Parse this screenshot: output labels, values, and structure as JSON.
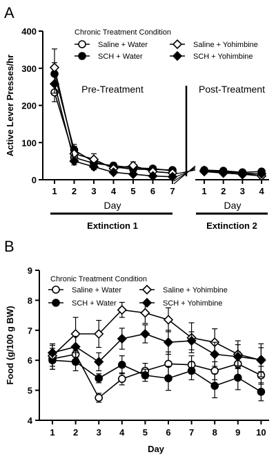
{
  "chart_data": [
    {
      "panel": "A",
      "type": "line",
      "ylabel": "Active Lever Presses/hr",
      "ylim": [
        0,
        400
      ],
      "yticks": [
        0,
        100,
        200,
        300,
        400
      ],
      "legend": {
        "title": "Chronic Treatment Condition",
        "placement": "top-right"
      },
      "annotations": {
        "pre": "Pre-Treatment",
        "post": "Post-Treatment"
      },
      "periods": [
        {
          "xlabel": "Day",
          "bracket_label": "Extinction 1",
          "x": [
            1,
            2,
            3,
            4,
            5,
            6,
            7
          ],
          "series": [
            {
              "name": "Saline + Water",
              "marker": "open-circle",
              "values": [
                235,
                60,
                44,
                38,
                32,
                30,
                24
              ],
              "errors": [
                25,
                10,
                10,
                8,
                7,
                7,
                6
              ]
            },
            {
              "name": "SCH + Water",
              "marker": "filled-circle",
              "values": [
                285,
                80,
                48,
                35,
                28,
                28,
                26
              ],
              "errors": [
                30,
                15,
                10,
                8,
                7,
                7,
                6
              ]
            },
            {
              "name": "Saline + Yohimbine",
              "marker": "open-diamond",
              "values": [
                302,
                70,
                55,
                30,
                38,
                22,
                18
              ],
              "errors": [
                50,
                20,
                15,
                10,
                10,
                8,
                8
              ]
            },
            {
              "name": "SCH + Yohimbine",
              "marker": "filled-diamond",
              "values": [
                258,
                50,
                35,
                20,
                15,
                10,
                8
              ],
              "errors": [
                25,
                10,
                8,
                5,
                5,
                4,
                3
              ]
            }
          ]
        },
        {
          "xlabel": "Day",
          "bracket_label": "Extinction 2",
          "x": [
            1,
            2,
            3,
            4
          ],
          "series": [
            {
              "name": "Saline + Water",
              "marker": "open-circle",
              "values": [
                24,
                22,
                18,
                15
              ],
              "errors": [
                5,
                5,
                4,
                4
              ]
            },
            {
              "name": "SCH + Water",
              "marker": "filled-circle",
              "values": [
                26,
                24,
                20,
                22
              ],
              "errors": [
                5,
                5,
                4,
                5
              ]
            },
            {
              "name": "Saline + Yohimbine",
              "marker": "open-diamond",
              "values": [
                22,
                18,
                15,
                10
              ],
              "errors": [
                5,
                4,
                4,
                3
              ]
            },
            {
              "name": "SCH + Yohimbine",
              "marker": "filled-diamond",
              "values": [
                25,
                20,
                14,
                16
              ],
              "errors": [
                5,
                4,
                3,
                4
              ]
            }
          ]
        }
      ]
    },
    {
      "panel": "B",
      "type": "line",
      "xlabel": "Day",
      "ylabel": "Food (g/100 g BW)",
      "ylim": [
        4,
        9
      ],
      "yticks": [
        4,
        5,
        6,
        7,
        8,
        9
      ],
      "legend": {
        "title": "Chronic Treatment Condition",
        "placement": "top"
      },
      "x": [
        1,
        2,
        3,
        4,
        5,
        6,
        7,
        8,
        9,
        10
      ],
      "series": [
        {
          "name": "Saline + Water",
          "marker": "open-circle",
          "values": [
            6.05,
            6.2,
            4.75,
            5.38,
            5.65,
            5.88,
            5.85,
            5.65,
            5.88,
            5.5
          ],
          "errors": [
            0.35,
            0.3,
            0.15,
            0.2,
            0.25,
            0.4,
            0.3,
            0.3,
            0.4,
            0.3
          ]
        },
        {
          "name": "SCH + Water",
          "marker": "filled-circle",
          "values": [
            6.0,
            5.95,
            5.4,
            5.85,
            5.5,
            5.4,
            5.65,
            5.15,
            5.42,
            4.95
          ],
          "errors": [
            0.3,
            0.3,
            0.15,
            0.3,
            0.2,
            0.4,
            0.3,
            0.4,
            0.4,
            0.3
          ]
        },
        {
          "name": "Saline + Yohimbine",
          "marker": "open-diamond",
          "values": [
            6.15,
            6.88,
            6.88,
            7.68,
            7.58,
            7.35,
            6.75,
            6.6,
            6.2,
            6.0
          ],
          "errors": [
            0.35,
            0.55,
            0.45,
            0.25,
            0.35,
            0.4,
            0.5,
            0.45,
            0.45,
            0.55
          ]
        },
        {
          "name": "SCH + Yohimbine",
          "marker": "filled-diamond",
          "values": [
            6.25,
            6.45,
            5.95,
            6.72,
            6.88,
            6.6,
            6.65,
            6.2,
            6.12,
            6.02
          ],
          "errors": [
            0.3,
            0.35,
            0.3,
            0.35,
            0.3,
            0.4,
            0.3,
            0.4,
            0.4,
            0.4
          ]
        }
      ]
    }
  ],
  "panel_labels": {
    "a": "A",
    "b": "B"
  }
}
